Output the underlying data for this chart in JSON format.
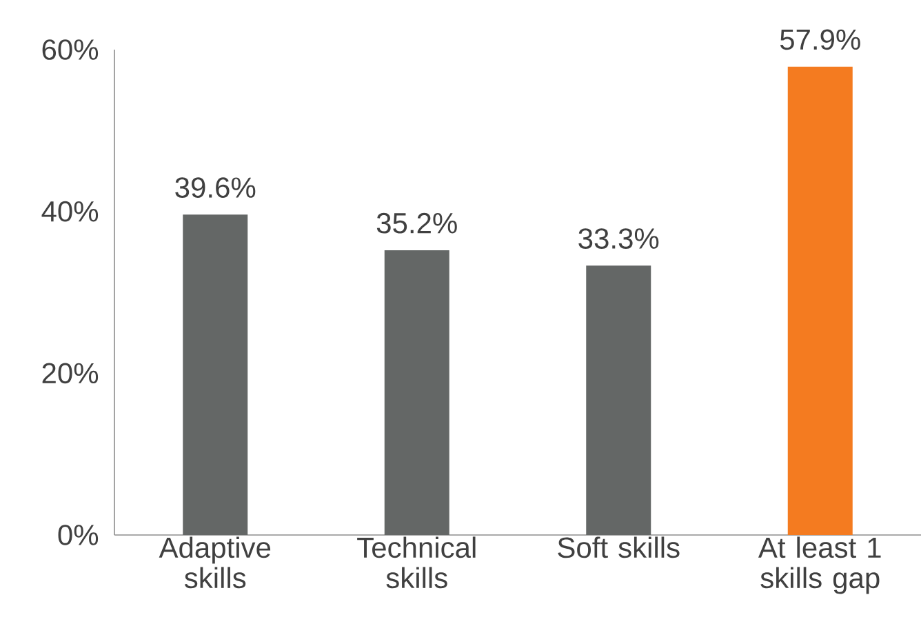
{
  "chart_data": {
    "type": "bar",
    "categories": [
      "Adaptive skills",
      "Technical skills",
      "Soft skills",
      "At least 1 skills gap"
    ],
    "values": [
      39.6,
      35.2,
      33.3,
      57.9
    ],
    "colors": [
      "#646766",
      "#646766",
      "#646766",
      "#f47b20"
    ],
    "value_labels": [
      "39.6%",
      "35.2%",
      "33.3%",
      "57.9%"
    ],
    "ylim": [
      0,
      60
    ],
    "yticks": [
      {
        "value": 0,
        "label": "0%"
      },
      {
        "value": 20,
        "label": "20%"
      },
      {
        "value": 40,
        "label": "40%"
      },
      {
        "value": 60,
        "label": "60%"
      }
    ],
    "grid": false
  }
}
